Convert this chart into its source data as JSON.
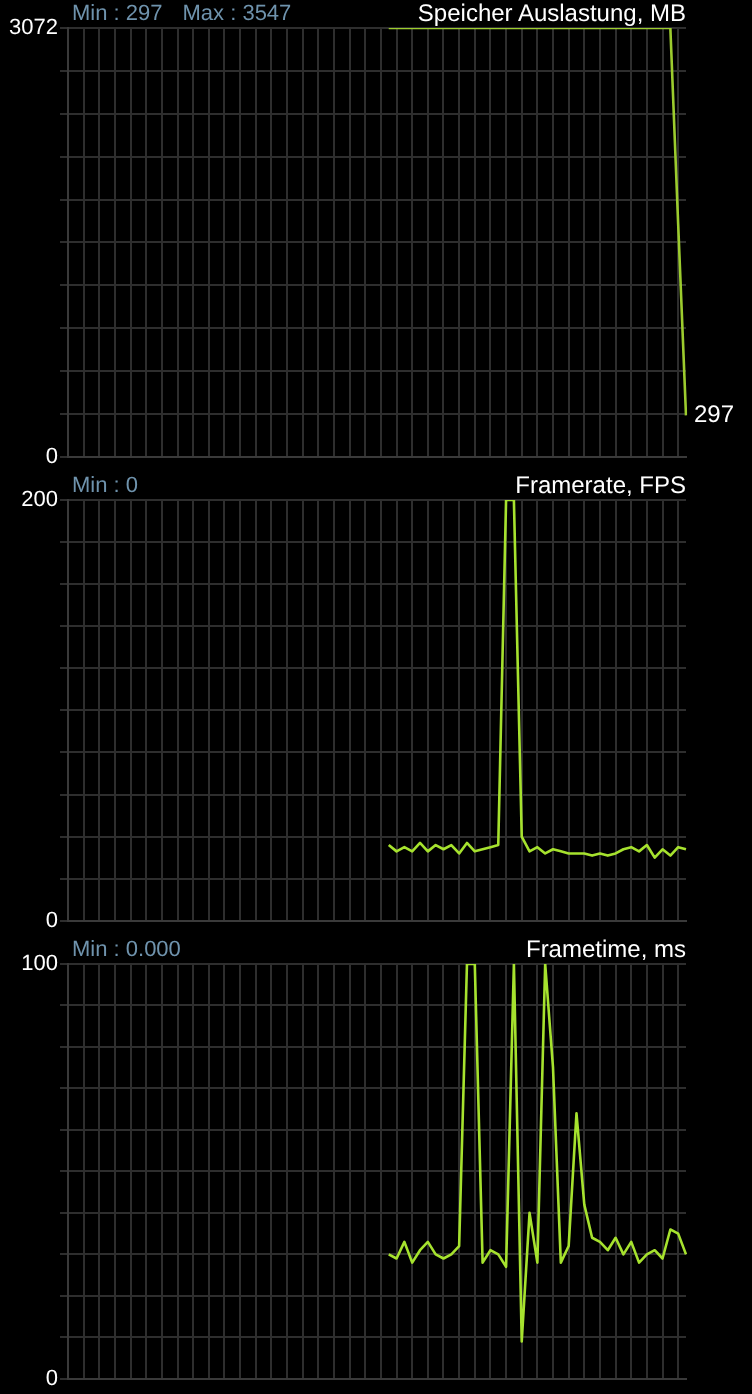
{
  "chart_data": [
    {
      "type": "line",
      "title": "Speicher Auslastung, MB",
      "categories": [
        null,
        null,
        null,
        null,
        null,
        null,
        null,
        null,
        null,
        null,
        null,
        null,
        null,
        null,
        null,
        null,
        null,
        null,
        null,
        null,
        null,
        null,
        null,
        null,
        null,
        null,
        null,
        null,
        null,
        null,
        null,
        null,
        null,
        null,
        null,
        null,
        null,
        null,
        null,
        null,
        null,
        null,
        null,
        null,
        null,
        null,
        null,
        null,
        null,
        null,
        null,
        null,
        null,
        null,
        null,
        null,
        null,
        null,
        null,
        null,
        null,
        null,
        null,
        null,
        null,
        null,
        null,
        null,
        null,
        null,
        null,
        null,
        null,
        null,
        null,
        null,
        null,
        null,
        null,
        null
      ],
      "series": [
        {
          "color": "#9ccc2e",
          "values": [
            null,
            null,
            null,
            null,
            null,
            null,
            null,
            null,
            null,
            null,
            null,
            null,
            null,
            null,
            null,
            null,
            null,
            null,
            null,
            null,
            null,
            null,
            null,
            null,
            null,
            null,
            null,
            null,
            null,
            null,
            null,
            null,
            null,
            null,
            null,
            null,
            null,
            null,
            null,
            null,
            null,
            3072,
            3072,
            3072,
            3072,
            3072,
            3072,
            3072,
            3072,
            3072,
            3072,
            3072,
            3072,
            3072,
            3072,
            3072,
            3072,
            3072,
            3072,
            3072,
            3072,
            3072,
            3072,
            3072,
            3072,
            3072,
            3072,
            3072,
            3072,
            3072,
            3072,
            3072,
            3072,
            3072,
            3072,
            3072,
            3072,
            3072,
            1666,
            297
          ]
        }
      ],
      "ylim": [
        0,
        3072
      ],
      "yticks": [
        0,
        {
          "value": 307.2,
          "label": null
        },
        {
          "value": 614.4,
          "label": null
        },
        {
          "value": 921.6,
          "label": null
        },
        {
          "value": 1228.8,
          "label": null
        },
        {
          "value": 1536,
          "label": null
        },
        {
          "value": 1843.2,
          "label": null
        },
        {
          "value": 2150.4,
          "label": null
        },
        {
          "value": 2457.6,
          "label": null
        },
        {
          "value": 2764.8,
          "label": null
        },
        3072
      ],
      "grid": true,
      "legend": false,
      "tick_labels": "y",
      "marker": "none",
      "line_style": "solid",
      "annotations": [
        "Min : 297",
        "Max : 3547",
        "297"
      ]
    },
    {
      "type": "line",
      "title": "Framerate, FPS",
      "categories": [
        null,
        null,
        null,
        null,
        null,
        null,
        null,
        null,
        null,
        null,
        null,
        null,
        null,
        null,
        null,
        null,
        null,
        null,
        null,
        null,
        null,
        null,
        null,
        null,
        null,
        null,
        null,
        null,
        null,
        null,
        null,
        null,
        null,
        null,
        null,
        null,
        null,
        null,
        null,
        null,
        null,
        null,
        null,
        null,
        null,
        null,
        null,
        null,
        null,
        null,
        null,
        null,
        null,
        null,
        null,
        null,
        null,
        null,
        null,
        null,
        null,
        null,
        null,
        null,
        null,
        null,
        null,
        null,
        null,
        null,
        null,
        null,
        null,
        null,
        null,
        null,
        null,
        null,
        null,
        null
      ],
      "series": [
        {
          "color": "#a6e22e",
          "values": [
            null,
            null,
            null,
            null,
            null,
            null,
            null,
            null,
            null,
            null,
            null,
            null,
            null,
            null,
            null,
            null,
            null,
            null,
            null,
            null,
            null,
            null,
            null,
            null,
            null,
            null,
            null,
            null,
            null,
            null,
            null,
            null,
            null,
            null,
            null,
            null,
            null,
            null,
            null,
            null,
            null,
            36,
            33,
            35,
            33,
            37,
            33,
            36,
            34,
            36,
            32,
            37,
            33,
            34,
            35,
            36,
            200,
            200,
            40,
            33,
            35,
            32,
            34,
            33,
            32,
            32,
            32,
            31,
            32,
            31,
            32,
            34,
            35,
            33,
            36,
            30,
            34,
            31,
            35,
            34
          ]
        }
      ],
      "ylim": [
        0,
        200
      ],
      "yticks": [
        0,
        {
          "value": 20,
          "label": null
        },
        {
          "value": 40,
          "label": null
        },
        {
          "value": 60,
          "label": null
        },
        {
          "value": 80,
          "label": null
        },
        {
          "value": 100,
          "label": null
        },
        {
          "value": 120,
          "label": null
        },
        {
          "value": 140,
          "label": null
        },
        {
          "value": 160,
          "label": null
        },
        {
          "value": 180,
          "label": null
        },
        200
      ],
      "grid": true,
      "legend": false,
      "tick_labels": "y",
      "marker": "none",
      "line_style": "solid",
      "annotations": [
        "Min : 0"
      ]
    },
    {
      "type": "line",
      "title": "Frametime, ms",
      "categories": [
        null,
        null,
        null,
        null,
        null,
        null,
        null,
        null,
        null,
        null,
        null,
        null,
        null,
        null,
        null,
        null,
        null,
        null,
        null,
        null,
        null,
        null,
        null,
        null,
        null,
        null,
        null,
        null,
        null,
        null,
        null,
        null,
        null,
        null,
        null,
        null,
        null,
        null,
        null,
        null,
        null,
        null,
        null,
        null,
        null,
        null,
        null,
        null,
        null,
        null,
        null,
        null,
        null,
        null,
        null,
        null,
        null,
        null,
        null,
        null,
        null,
        null,
        null,
        null,
        null,
        null,
        null,
        null,
        null,
        null,
        null,
        null,
        null,
        null,
        null,
        null,
        null,
        null,
        null,
        null
      ],
      "series": [
        {
          "color": "#a6e22e",
          "values": [
            null,
            null,
            null,
            null,
            null,
            null,
            null,
            null,
            null,
            null,
            null,
            null,
            null,
            null,
            null,
            null,
            null,
            null,
            null,
            null,
            null,
            null,
            null,
            null,
            null,
            null,
            null,
            null,
            null,
            null,
            null,
            null,
            null,
            null,
            null,
            null,
            null,
            null,
            null,
            null,
            null,
            30,
            29,
            33,
            28,
            31,
            33,
            30,
            29,
            30,
            32,
            100,
            100,
            28,
            31,
            30,
            27,
            100,
            9,
            40,
            28,
            100,
            75,
            28,
            32,
            64,
            42,
            34,
            33,
            31,
            34,
            30,
            33,
            28,
            30,
            31,
            29,
            36,
            35,
            30
          ]
        }
      ],
      "ylim": [
        0,
        100
      ],
      "yticks": [
        0,
        {
          "value": 10,
          "label": null
        },
        {
          "value": 20,
          "label": null
        },
        {
          "value": 30,
          "label": null
        },
        {
          "value": 40,
          "label": null
        },
        {
          "value": 50,
          "label": null
        },
        {
          "value": 60,
          "label": null
        },
        {
          "value": 70,
          "label": null
        },
        {
          "value": 80,
          "label": null
        },
        {
          "value": 90,
          "label": null
        },
        100
      ],
      "grid": true,
      "legend": false,
      "tick_labels": "y",
      "marker": "none",
      "line_style": "solid",
      "annotations": [
        "Min : 0.000"
      ]
    }
  ]
}
